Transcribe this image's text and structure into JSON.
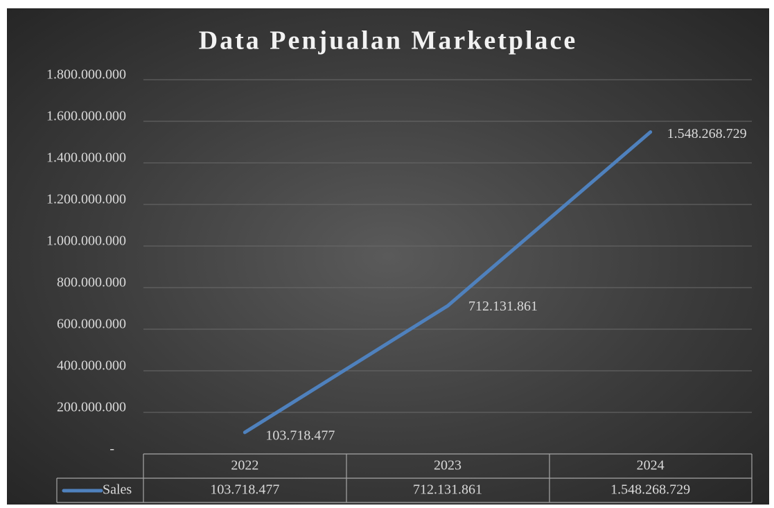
{
  "chart_data": {
    "type": "line",
    "title": "Data Penjualan Marketplace",
    "categories": [
      "2022",
      "2023",
      "2024"
    ],
    "series": [
      {
        "name": "Sales",
        "color": "#4f81bd",
        "values": [
          103718477,
          712131861,
          1548268729
        ],
        "value_labels": [
          "103.718.477",
          "712.131.861",
          "1.548.268.729"
        ]
      }
    ],
    "ylim": [
      0,
      1800000000
    ],
    "yticks": [
      {
        "value": 0,
        "label": "-"
      },
      {
        "value": 200000000,
        "label": "200.000.000"
      },
      {
        "value": 400000000,
        "label": "400.000.000"
      },
      {
        "value": 600000000,
        "label": "600.000.000"
      },
      {
        "value": 800000000,
        "label": "800.000.000"
      },
      {
        "value": 1000000000,
        "label": "1.000.000.000"
      },
      {
        "value": 1200000000,
        "label": "1.200.000.000"
      },
      {
        "value": 1400000000,
        "label": "1.400.000.000"
      },
      {
        "value": 1600000000,
        "label": "1.600.000.000"
      },
      {
        "value": 1800000000,
        "label": "1.800.000.000"
      }
    ],
    "grid": true
  }
}
